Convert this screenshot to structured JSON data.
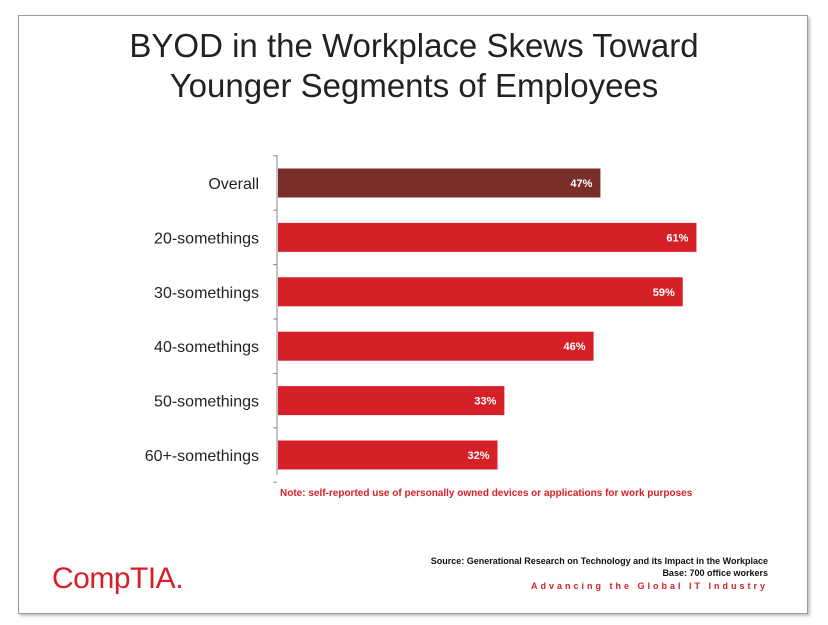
{
  "title_lines": [
    "BYOD in the Workplace Skews Toward",
    "Younger Segments of Employees"
  ],
  "chart_data": {
    "type": "bar",
    "orientation": "horizontal",
    "categories": [
      "Overall",
      "20-somethings",
      "30-somethings",
      "40-somethings",
      "50-somethings",
      "60+-somethings"
    ],
    "values": [
      47,
      61,
      59,
      46,
      33,
      32
    ],
    "value_labels": [
      "47%",
      "61%",
      "59%",
      "46%",
      "33%",
      "32%"
    ],
    "colors": [
      "#7a2e2a",
      "#d62027",
      "#d62027",
      "#d62027",
      "#d62027",
      "#d62027"
    ],
    "xlim": [
      0,
      100
    ],
    "grid": false,
    "legend": "none"
  },
  "note": "Note: self-reported use of personally owned devices or applications for work purposes",
  "source_line": "Source: Generational Research on Technology and its Impact in the Workplace",
  "base_line": "Base: 700 office workers",
  "tagline": "Advancing the Global IT Industry",
  "logo_text": "CompTIA",
  "logo_mark": "."
}
